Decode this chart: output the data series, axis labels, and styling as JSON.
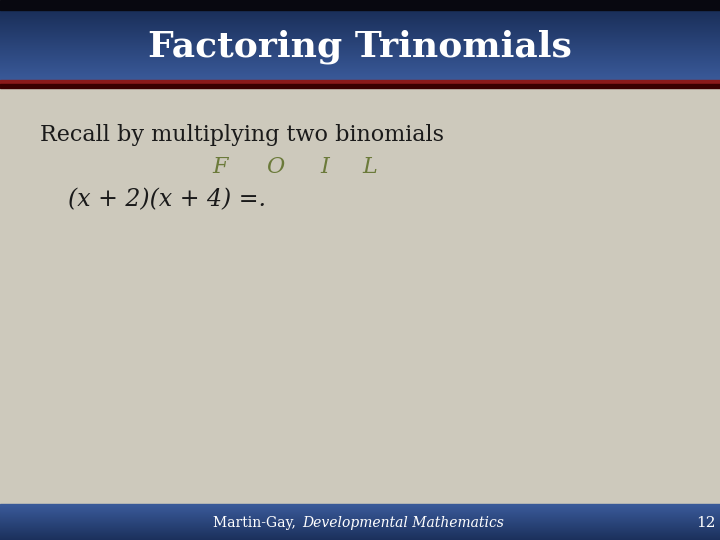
{
  "title": "Factoring Trinomials",
  "title_color": "#ffffff",
  "body_bg": "#cdc9bc",
  "red_line_color": "#8b1a1a",
  "dark_line_color": "#3a0000",
  "text_line1": "Recall by multiplying two binomials",
  "text_foil_F": "F",
  "text_foil_O": "O",
  "text_foil_I": "I",
  "text_foil_L": "L",
  "text_expr": "(x + 2)(x + 4) =.",
  "foil_color": "#6b7a3a",
  "body_text_color": "#1a1a1a",
  "footer_plain": "Martin-Gay, ",
  "footer_italic": "Developmental Mathematics",
  "footer_num": "12",
  "footer_text_color": "#ffffff",
  "dark_top_bar": "#080810",
  "title_bar_dark": "#1a2f5a",
  "title_bar_mid": "#2a4a8a",
  "title_bar_light": "#3a5a9a",
  "footer_bar_dark": "#1a2f5a",
  "footer_bar_light": "#3a5a9a"
}
